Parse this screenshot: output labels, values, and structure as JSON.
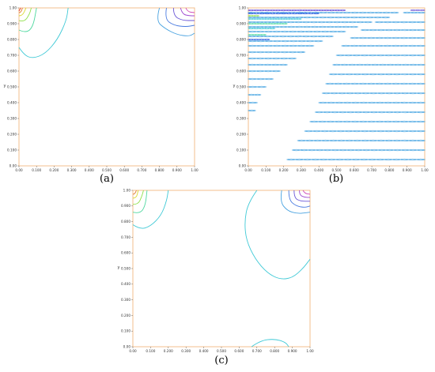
{
  "chart_data": [
    {
      "panel": "a",
      "type": "contour",
      "caption": "(a)",
      "ylabel": "y",
      "xlim": [
        0,
        1
      ],
      "ylim": [
        0,
        1
      ],
      "xticks": [
        "0.00",
        "0.100",
        "0.200",
        "0.300",
        "0.400",
        "0.500",
        "0.600",
        "0.700",
        "0.800",
        "0.900",
        "1.00"
      ],
      "yticks": [
        "0.00",
        "0.100",
        "0.200",
        "0.300",
        "0.400",
        "0.500",
        "0.600",
        "0.700",
        "0.800",
        "0.900",
        "1.00"
      ],
      "contours": [
        {
          "color": "#3ec9d6",
          "points": [
            [
              0.0,
              0.75
            ],
            [
              0.03,
              0.7
            ],
            [
              0.08,
              0.68
            ],
            [
              0.15,
              0.71
            ],
            [
              0.22,
              0.8
            ],
            [
              0.27,
              0.92
            ],
            [
              0.28,
              1.0
            ]
          ]
        },
        {
          "color": "#4fd8a0",
          "points": [
            [
              0.0,
              0.86
            ],
            [
              0.04,
              0.84
            ],
            [
              0.08,
              0.88
            ],
            [
              0.1,
              1.0
            ]
          ]
        },
        {
          "color": "#8fe04a",
          "points": [
            [
              0.0,
              0.92
            ],
            [
              0.03,
              0.91
            ],
            [
              0.06,
              0.96
            ],
            [
              0.07,
              1.0
            ]
          ]
        },
        {
          "color": "#d8d82c",
          "points": [
            [
              0.0,
              0.95
            ],
            [
              0.02,
              0.95
            ],
            [
              0.04,
              1.0
            ]
          ]
        },
        {
          "color": "#e0772a",
          "points": [
            [
              0.0,
              0.97
            ],
            [
              0.01,
              0.97
            ],
            [
              0.02,
              1.0
            ]
          ]
        },
        {
          "color": "#e33b2e",
          "points": [
            [
              0.0,
              0.98
            ],
            [
              0.01,
              1.0
            ]
          ]
        },
        {
          "color": "#4aa3e0",
          "points": [
            [
              0.8,
              1.0
            ],
            [
              0.78,
              0.92
            ],
            [
              0.83,
              0.87
            ],
            [
              0.9,
              0.83
            ],
            [
              0.97,
              0.82
            ],
            [
              1.0,
              0.84
            ]
          ]
        },
        {
          "color": "#4a7be0",
          "points": [
            [
              0.84,
              1.0
            ],
            [
              0.83,
              0.93
            ],
            [
              0.88,
              0.89
            ],
            [
              0.95,
              0.88
            ],
            [
              1.0,
              0.89
            ]
          ]
        },
        {
          "color": "#6a56d6",
          "points": [
            [
              0.88,
              1.0
            ],
            [
              0.88,
              0.95
            ],
            [
              0.93,
              0.92
            ],
            [
              1.0,
              0.92
            ]
          ]
        },
        {
          "color": "#a04ad0",
          "points": [
            [
              0.92,
              1.0
            ],
            [
              0.93,
              0.96
            ],
            [
              0.97,
              0.95
            ],
            [
              1.0,
              0.95
            ]
          ]
        },
        {
          "color": "#d04ab8",
          "points": [
            [
              0.95,
              1.0
            ],
            [
              0.96,
              0.975
            ],
            [
              1.0,
              0.97
            ]
          ]
        }
      ]
    },
    {
      "panel": "b",
      "type": "contour",
      "caption": "(b)",
      "ylabel": "y",
      "xlim": [
        0,
        1
      ],
      "ylim": [
        0,
        1
      ],
      "xticks": [
        "0.00",
        "0.100",
        "0.200",
        "0.300",
        "0.400",
        "0.500",
        "0.600",
        "0.700",
        "0.800",
        "0.900",
        "1.00"
      ],
      "yticks": [
        "0.00",
        "0.100",
        "0.200",
        "0.300",
        "0.400",
        "0.500",
        "0.600",
        "0.700",
        "0.800",
        "0.900",
        "1.00"
      ],
      "stripes": {
        "color": "#3ea0e0",
        "rows": [
          {
            "y": 0.97,
            "x0": 0.0,
            "x1": 0.85
          },
          {
            "y": 0.94,
            "x0": 0.0,
            "x1": 0.8
          },
          {
            "y": 0.91,
            "x0": 0.0,
            "x1": 0.7
          },
          {
            "y": 0.88,
            "x0": 0.0,
            "x1": 0.62
          },
          {
            "y": 0.85,
            "x0": 0.0,
            "x1": 0.55
          },
          {
            "y": 0.82,
            "x0": 0.0,
            "x1": 0.48
          },
          {
            "y": 0.79,
            "x0": 0.0,
            "x1": 0.42
          },
          {
            "y": 0.76,
            "x0": 0.0,
            "x1": 0.37
          },
          {
            "y": 0.72,
            "x0": 0.0,
            "x1": 0.32
          },
          {
            "y": 0.68,
            "x0": 0.0,
            "x1": 0.27
          },
          {
            "y": 0.64,
            "x0": 0.0,
            "x1": 0.22
          },
          {
            "y": 0.6,
            "x0": 0.0,
            "x1": 0.18
          },
          {
            "y": 0.55,
            "x0": 0.0,
            "x1": 0.14
          },
          {
            "y": 0.5,
            "x0": 0.0,
            "x1": 0.1
          },
          {
            "y": 0.45,
            "x0": 0.0,
            "x1": 0.07
          },
          {
            "y": 0.4,
            "x0": 0.0,
            "x1": 0.05
          },
          {
            "y": 0.35,
            "x0": 0.0,
            "x1": 0.04
          },
          {
            "y": 0.97,
            "x0": 0.88,
            "x1": 1.0
          },
          {
            "y": 0.91,
            "x0": 0.72,
            "x1": 1.0
          },
          {
            "y": 0.86,
            "x0": 0.64,
            "x1": 1.0
          },
          {
            "y": 0.81,
            "x0": 0.58,
            "x1": 1.0
          },
          {
            "y": 0.76,
            "x0": 0.53,
            "x1": 1.0
          },
          {
            "y": 0.7,
            "x0": 0.5,
            "x1": 1.0
          },
          {
            "y": 0.64,
            "x0": 0.48,
            "x1": 1.0
          },
          {
            "y": 0.58,
            "x0": 0.46,
            "x1": 1.0
          },
          {
            "y": 0.52,
            "x0": 0.44,
            "x1": 1.0
          },
          {
            "y": 0.46,
            "x0": 0.42,
            "x1": 1.0
          },
          {
            "y": 0.4,
            "x0": 0.4,
            "x1": 1.0
          },
          {
            "y": 0.34,
            "x0": 0.38,
            "x1": 1.0
          },
          {
            "y": 0.28,
            "x0": 0.35,
            "x1": 1.0
          },
          {
            "y": 0.22,
            "x0": 0.32,
            "x1": 1.0
          },
          {
            "y": 0.16,
            "x0": 0.28,
            "x1": 1.0
          },
          {
            "y": 0.1,
            "x0": 0.25,
            "x1": 1.0
          },
          {
            "y": 0.04,
            "x0": 0.22,
            "x1": 1.0
          }
        ],
        "hot": [
          {
            "y": 0.985,
            "x0": 0.0,
            "x1": 0.55,
            "color": "#5a3ad0"
          },
          {
            "y": 0.965,
            "x0": 0.0,
            "x1": 0.4,
            "color": "#2a5ae0"
          },
          {
            "y": 0.95,
            "x0": 0.0,
            "x1": 0.06,
            "color": "#8fe04a"
          },
          {
            "y": 0.93,
            "x0": 0.0,
            "x1": 0.3,
            "color": "#3ec9d6"
          },
          {
            "y": 0.9,
            "x0": 0.0,
            "x1": 0.22,
            "color": "#4fd8a0"
          },
          {
            "y": 0.87,
            "x0": 0.0,
            "x1": 0.15,
            "color": "#3ec9d6"
          },
          {
            "y": 0.83,
            "x0": 0.0,
            "x1": 0.1,
            "color": "#4fd8a0"
          },
          {
            "y": 0.8,
            "x0": 0.0,
            "x1": 0.12,
            "color": "#2a5ae0"
          },
          {
            "y": 0.985,
            "x0": 0.92,
            "x1": 1.0,
            "color": "#5a3ad0"
          }
        ]
      }
    },
    {
      "panel": "c",
      "type": "contour",
      "caption": "(c)",
      "ylabel": "y",
      "xlim": [
        0,
        1
      ],
      "ylim": [
        0,
        1
      ],
      "xticks": [
        "0.00",
        "0.100",
        "0.200",
        "0.300",
        "0.400",
        "0.500",
        "0.600",
        "0.700",
        "0.800",
        "0.900",
        "1.00"
      ],
      "yticks": [
        "0.00",
        "0.100",
        "0.200",
        "0.300",
        "0.400",
        "0.500",
        "0.600",
        "0.700",
        "0.800",
        "0.900",
        "1.00"
      ],
      "contours": [
        {
          "color": "#3ec9d6",
          "points": [
            [
              0.0,
              0.78
            ],
            [
              0.04,
              0.75
            ],
            [
              0.1,
              0.77
            ],
            [
              0.16,
              0.84
            ],
            [
              0.19,
              0.93
            ],
            [
              0.2,
              1.0
            ]
          ]
        },
        {
          "color": "#4fd8a0",
          "points": [
            [
              0.0,
              0.86
            ],
            [
              0.04,
              0.85
            ],
            [
              0.07,
              0.9
            ],
            [
              0.08,
              1.0
            ]
          ]
        },
        {
          "color": "#8fe04a",
          "points": [
            [
              0.0,
              0.91
            ],
            [
              0.03,
              0.91
            ],
            [
              0.05,
              0.96
            ],
            [
              0.06,
              1.0
            ]
          ]
        },
        {
          "color": "#d8d82c",
          "points": [
            [
              0.0,
              0.95
            ],
            [
              0.02,
              0.95
            ],
            [
              0.03,
              1.0
            ]
          ]
        },
        {
          "color": "#e0772a",
          "points": [
            [
              0.0,
              0.975
            ],
            [
              0.01,
              0.975
            ],
            [
              0.02,
              1.0
            ]
          ]
        },
        {
          "color": "#3ec9d6",
          "points": [
            [
              0.7,
              1.0
            ],
            [
              0.65,
              0.92
            ],
            [
              0.63,
              0.8
            ],
            [
              0.64,
              0.68
            ],
            [
              0.69,
              0.56
            ],
            [
              0.76,
              0.47
            ],
            [
              0.83,
              0.43
            ],
            [
              0.9,
              0.44
            ],
            [
              0.96,
              0.5
            ],
            [
              1.0,
              0.56
            ]
          ]
        },
        {
          "color": "#3ec9d6",
          "points": [
            [
              0.67,
              0.0
            ],
            [
              0.72,
              0.04
            ],
            [
              0.8,
              0.05
            ],
            [
              0.86,
              0.03
            ],
            [
              0.88,
              0.0
            ]
          ]
        },
        {
          "color": "#4aa3e0",
          "points": [
            [
              0.84,
              1.0
            ],
            [
              0.83,
              0.93
            ],
            [
              0.87,
              0.87
            ],
            [
              0.93,
              0.85
            ],
            [
              1.0,
              0.86
            ]
          ]
        },
        {
          "color": "#4a7be0",
          "points": [
            [
              0.88,
              1.0
            ],
            [
              0.88,
              0.94
            ],
            [
              0.92,
              0.9
            ],
            [
              0.97,
              0.89
            ],
            [
              1.0,
              0.9
            ]
          ]
        },
        {
          "color": "#6a56d6",
          "points": [
            [
              0.91,
              1.0
            ],
            [
              0.91,
              0.95
            ],
            [
              0.95,
              0.93
            ],
            [
              1.0,
              0.93
            ]
          ]
        },
        {
          "color": "#a04ad0",
          "points": [
            [
              0.94,
              1.0
            ],
            [
              0.94,
              0.97
            ],
            [
              0.97,
              0.955
            ],
            [
              1.0,
              0.955
            ]
          ]
        },
        {
          "color": "#d04ab8",
          "points": [
            [
              0.96,
              1.0
            ],
            [
              0.97,
              0.98
            ],
            [
              1.0,
              0.975
            ]
          ]
        }
      ]
    }
  ]
}
